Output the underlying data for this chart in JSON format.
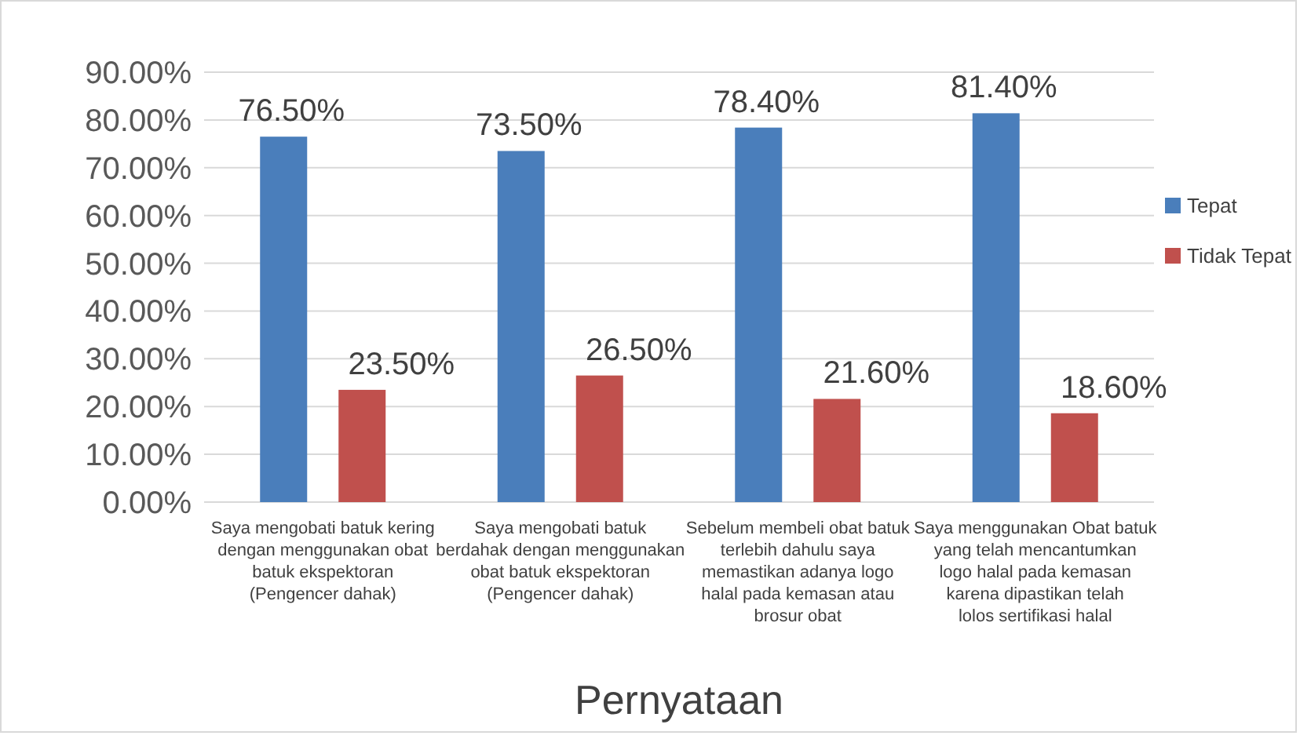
{
  "chart_data": {
    "type": "bar",
    "xlabel": "Pernyataan",
    "categories": [
      "Saya mengobati batuk kering dengan menggunakan obat batuk ekspektoran (Pengencer dahak)",
      "Saya mengobati batuk berdahak dengan menggunakan obat batuk ekspektoran (Pengencer dahak)",
      "Sebelum membeli obat batuk terlebih dahulu saya memastikan adanya logo halal pada kemasan atau brosur obat",
      "Saya menggunakan Obat batuk yang telah mencantumkan logo halal pada kemasan karena dipastikan telah lolos sertifikasi halal"
    ],
    "series": [
      {
        "name": "Tepat",
        "color": "#4a7ebb",
        "values": [
          76.5,
          73.5,
          78.4,
          81.4
        ],
        "value_labels": [
          "76.50%",
          "73.50%",
          "78.40%",
          "81.40%"
        ]
      },
      {
        "name": "Tidak Tepat",
        "color": "#c0504d",
        "values": [
          23.5,
          26.5,
          21.6,
          18.6
        ],
        "value_labels": [
          "23.50%",
          "26.50%",
          "21.60%",
          "18.60%"
        ]
      }
    ],
    "ylim": [
      0,
      90
    ],
    "yticks": [
      {
        "value": 0,
        "label": "0.00%"
      },
      {
        "value": 10,
        "label": "10.00%"
      },
      {
        "value": 20,
        "label": "20.00%"
      },
      {
        "value": 30,
        "label": "30.00%"
      },
      {
        "value": 40,
        "label": "40.00%"
      },
      {
        "value": 50,
        "label": "50.00%"
      },
      {
        "value": 60,
        "label": "60.00%"
      },
      {
        "value": 70,
        "label": "70.00%"
      },
      {
        "value": 80,
        "label": "80.00%"
      },
      {
        "value": 90,
        "label": "90.00%"
      }
    ],
    "grid": "y",
    "legend": "right"
  }
}
